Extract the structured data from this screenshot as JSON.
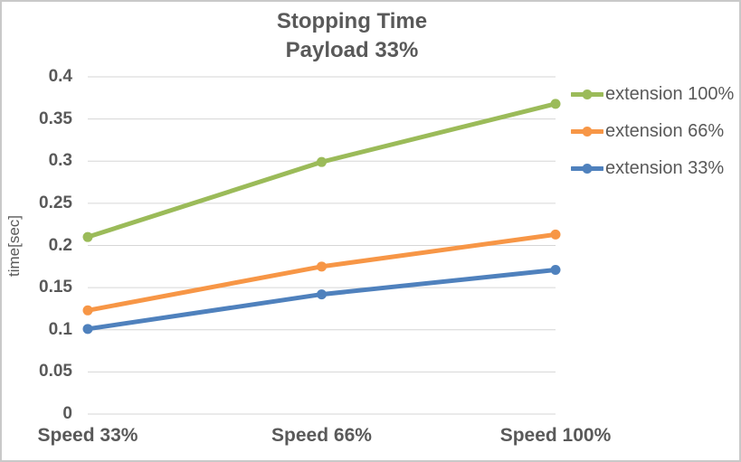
{
  "chart_data": {
    "type": "line",
    "title": "Stopping Time",
    "subtitle": "Payload 33%",
    "categories": [
      "Speed 33%",
      "Speed 66%",
      "Speed 100%"
    ],
    "series": [
      {
        "name": "extension 100%",
        "color": "#9BBB59",
        "values": [
          0.21,
          0.299,
          0.368
        ]
      },
      {
        "name": "extension 66%",
        "color": "#F79646",
        "values": [
          0.123,
          0.175,
          0.213
        ]
      },
      {
        "name": "extension 33%",
        "color": "#4F81BD",
        "values": [
          0.101,
          0.142,
          0.171
        ]
      }
    ],
    "xlabel": "",
    "ylabel": "time[sec]",
    "ylim": [
      0,
      0.4
    ],
    "yticks": [
      "0",
      "0.05",
      "0.1",
      "0.15",
      "0.2",
      "0.25",
      "0.3",
      "0.35",
      "0.4"
    ],
    "grid": true,
    "legend_position": "right"
  },
  "style": {
    "text_color": "#595959",
    "gridline_color": "#D6D6D6",
    "border_color": "#C9C9C9",
    "background": "#FFFFFF",
    "line_width": 5,
    "marker_radius": 5.5
  }
}
